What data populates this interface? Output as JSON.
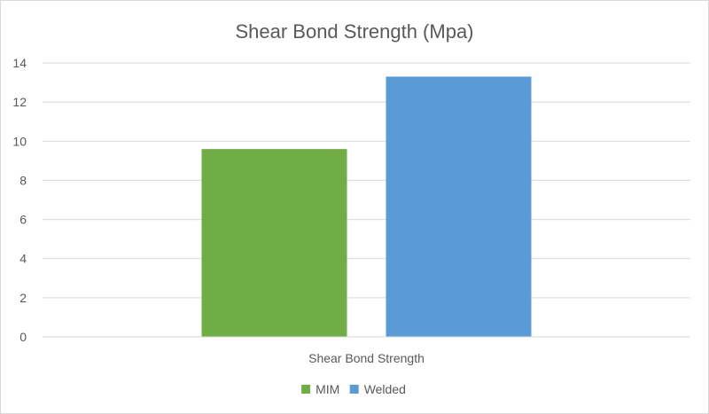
{
  "chart_data": {
    "type": "bar",
    "title": "Shear Bond Strength (Mpa)",
    "categories": [
      "Shear Bond Strength"
    ],
    "series": [
      {
        "name": "MIM",
        "values": [
          9.6
        ],
        "color": "#70ad47"
      },
      {
        "name": "Welded",
        "values": [
          13.3
        ],
        "color": "#5b9bd5"
      }
    ],
    "ylim": [
      0,
      14
    ],
    "yticks": [
      0,
      2,
      4,
      6,
      8,
      10,
      12,
      14
    ],
    "grid": true,
    "legend_position": "bottom"
  }
}
